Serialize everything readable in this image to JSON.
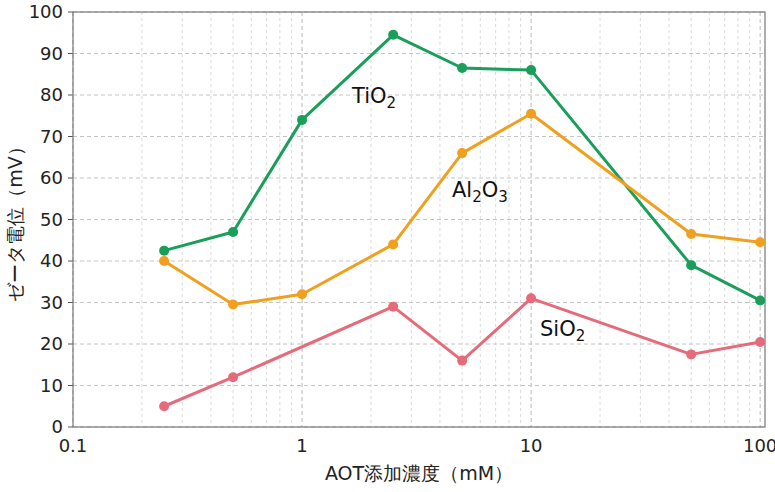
{
  "chart_data": {
    "type": "line",
    "x_label": "AOT添加濃度（mM）",
    "y_label": "ゼータ電位（mV）",
    "log": "x",
    "grid": true,
    "xlim": [
      0.1,
      105
    ],
    "ylim": [
      0,
      100
    ],
    "xticks": [
      0.1,
      1,
      10,
      100
    ],
    "yticks": [
      0,
      10,
      20,
      30,
      40,
      50,
      60,
      70,
      80,
      90,
      100
    ],
    "series": [
      {
        "name": "TiO2",
        "color": "#1a9e5a",
        "marker": "circle",
        "line_style": "solid",
        "x": [
          0.25,
          0.5,
          1,
          2.5,
          5,
          10,
          50,
          100
        ],
        "values": [
          42.5,
          47,
          74,
          94.5,
          86.5,
          86,
          39,
          30.5
        ]
      },
      {
        "name": "Al2O3",
        "color": "#f0a01e",
        "marker": "circle",
        "line_style": "solid",
        "x": [
          0.25,
          0.5,
          1,
          2.5,
          5,
          10,
          50,
          100
        ],
        "values": [
          40,
          29.5,
          32,
          44,
          66,
          75.5,
          46.5,
          44.5
        ]
      },
      {
        "name": "SiO2",
        "color": "#e66b7a",
        "marker": "circle",
        "line_style": "solid",
        "x": [
          0.25,
          0.5,
          2.5,
          5,
          10,
          50,
          100
        ],
        "values": [
          5,
          12,
          29,
          16,
          31,
          17.5,
          20.5
        ]
      }
    ]
  }
}
